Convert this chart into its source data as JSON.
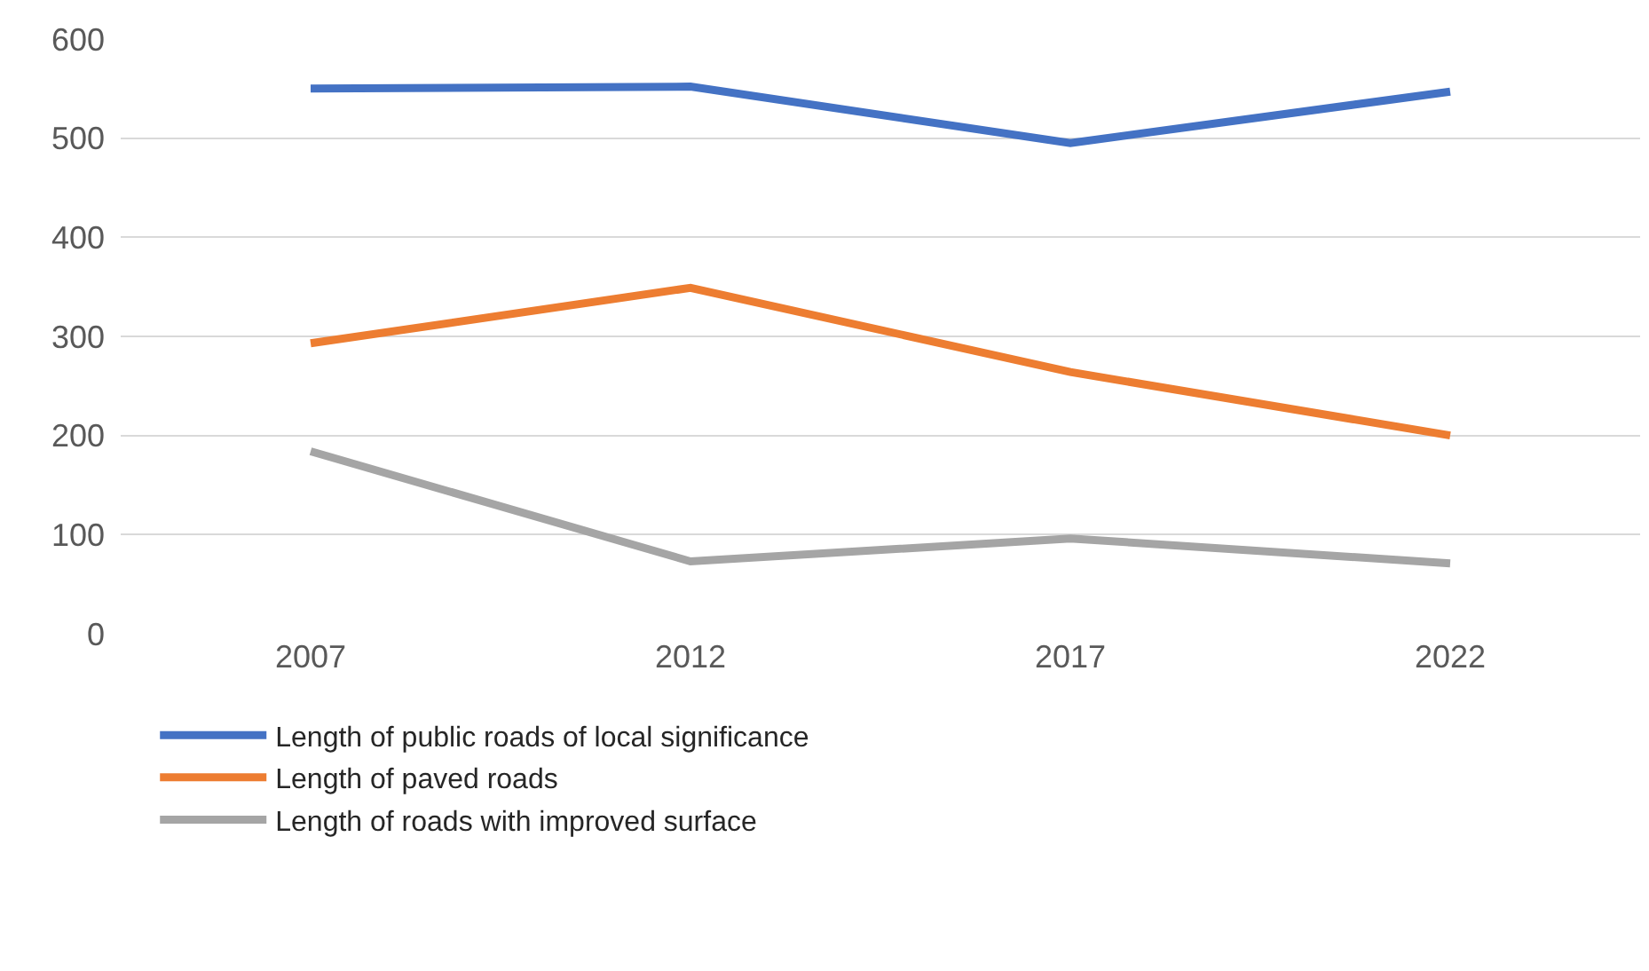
{
  "chart_data": {
    "type": "line",
    "categories": [
      "2007",
      "2012",
      "2017",
      "2022"
    ],
    "series": [
      {
        "name": "Length of public roads of local significance",
        "color": "#4472c4",
        "values": [
          550,
          552,
          495,
          547
        ]
      },
      {
        "name": "Length of paved roads",
        "color": "#ed7d31",
        "values": [
          293,
          349,
          264,
          200
        ]
      },
      {
        "name": "Length of roads with improved surface",
        "color": "#a5a5a5",
        "values": [
          184,
          73,
          96,
          71
        ]
      }
    ],
    "ylim": [
      0,
      600
    ],
    "yticks": [
      0,
      100,
      200,
      300,
      400,
      500,
      600
    ],
    "grid": "y",
    "legend": "bottom",
    "marker": "none",
    "line_style": "solid"
  }
}
